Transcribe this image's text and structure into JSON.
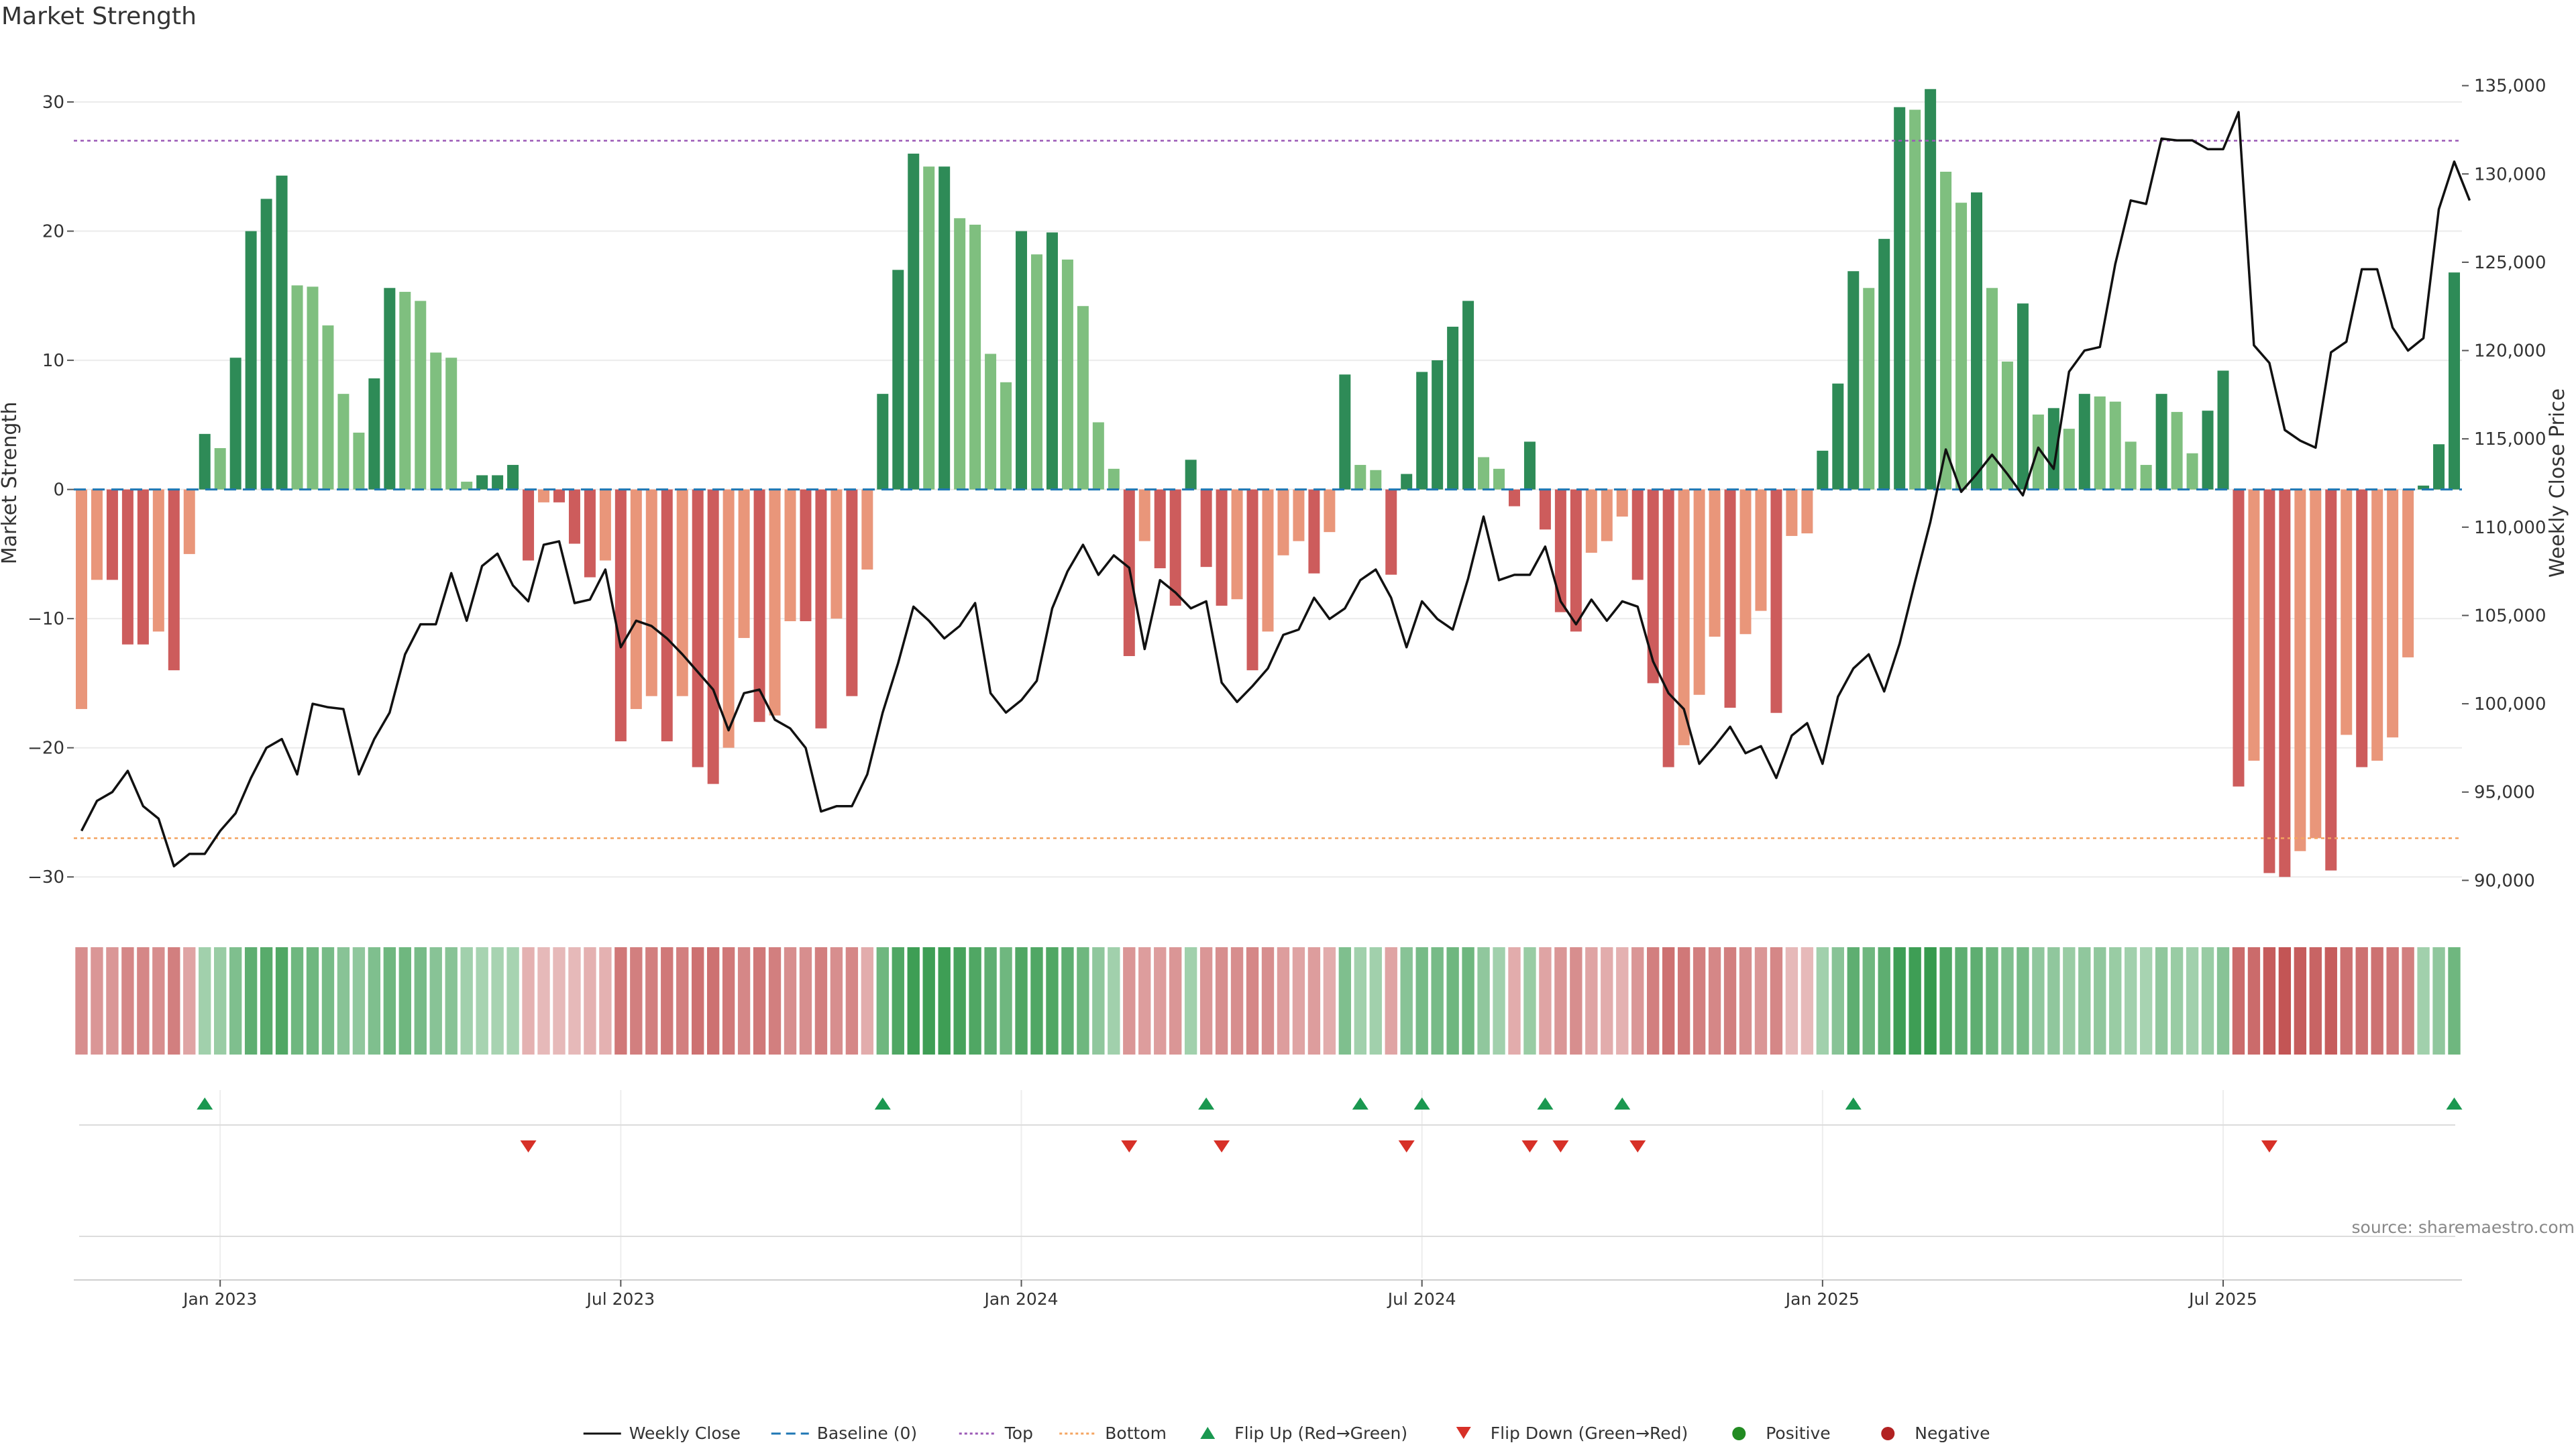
{
  "title": "Market Strength",
  "source": "source: sharemaestro.com",
  "colors": {
    "pos_strong": "#2e8b57",
    "pos_light": "#7fbf7f",
    "neg_strong": "#cd5c5c",
    "neg_light": "#e9967a",
    "price_line": "#111111",
    "baseline": "#1f77b4",
    "top_line": "#9b59b6",
    "bottom_line": "#f4a460",
    "flip_up": "#1a9850",
    "flip_down": "#d73027",
    "positive": "#228b22",
    "negative": "#b22222"
  },
  "chart_data": {
    "type": "bar",
    "title": "Market Strength",
    "ylabel_left": "Market Strength",
    "ylabel_right": "Weekly Close Price",
    "ylim_left": [
      -33,
      34
    ],
    "ylim_right": [
      88000,
      137000
    ],
    "yticks_left": [
      30,
      20,
      10,
      0,
      -10,
      -20,
      -30
    ],
    "yticks_left_labels": [
      "30",
      "20",
      "10",
      "0",
      "−10",
      "−20",
      "−30"
    ],
    "yticks_right": [
      135000,
      130000,
      125000,
      120000,
      115000,
      110000,
      105000,
      100000,
      95000,
      90000
    ],
    "yticks_right_labels": [
      "135,000",
      "130,000",
      "125,000",
      "120,000",
      "115,000",
      "110,000",
      "105,000",
      "100,000",
      "95,000",
      "90,000"
    ],
    "x_ticks": [
      {
        "label": "Jan 2023",
        "index": 9
      },
      {
        "label": "Jul 2023",
        "index": 35
      },
      {
        "label": "Jan 2024",
        "index": 61
      },
      {
        "label": "Jul 2024",
        "index": 87
      },
      {
        "label": "Jan 2025",
        "index": 113
      },
      {
        "label": "Jul 2025",
        "index": 139
      }
    ],
    "top_threshold": 27,
    "bottom_threshold": -27,
    "strength": [
      -17,
      -7,
      -7,
      -12,
      -12,
      -11,
      -14,
      -5,
      4.3,
      3.2,
      10.2,
      20,
      22.5,
      24.3,
      15.8,
      15.7,
      12.7,
      7.4,
      4.4,
      8.6,
      15.6,
      15.3,
      14.6,
      10.6,
      10.2,
      0.6,
      1.1,
      1.1,
      1.9,
      -5.5,
      -1,
      -1,
      -4.2,
      -6.8,
      -5.5,
      -19.5,
      -17,
      -16,
      -19.5,
      -16,
      -21.5,
      -22.8,
      -20,
      -11.5,
      -18,
      -17.5,
      -10.2,
      -10.2,
      -18.5,
      -10,
      -16,
      -6.2,
      7.4,
      17,
      26,
      25,
      25,
      21,
      20.5,
      10.5,
      8.3,
      20,
      18.2,
      19.9,
      17.8,
      14.2,
      5.2,
      1.6,
      -12.9,
      -4,
      -6.1,
      -9,
      2.3,
      -6,
      -9,
      -8.5,
      -14,
      -11,
      -5.1,
      -4,
      -6.5,
      -3.3,
      8.9,
      1.9,
      1.5,
      -6.6,
      1.2,
      9.1,
      10,
      12.6,
      14.6,
      2.5,
      1.6,
      -1.3,
      3.7,
      -3.1,
      -9.5,
      -11,
      -4.9,
      -4,
      -2.1,
      -7,
      -15,
      -21.5,
      -19.8,
      -15.9,
      -11.4,
      -16.9,
      -11.2,
      -9.4,
      -17.3,
      -3.6,
      -3.4,
      3,
      8.2,
      16.9,
      15.6,
      19.4,
      29.6,
      29.4,
      31,
      24.6,
      22.2,
      23,
      15.6,
      9.9,
      14.4,
      5.8,
      6.3,
      4.7,
      7.4,
      7.2,
      6.8,
      3.7,
      1.9,
      7.4,
      6,
      2.8,
      6.1,
      9.2,
      -23,
      -21,
      -29.7,
      -30,
      -28,
      -27,
      -29.5,
      -19,
      -21.5,
      -21,
      -19.2,
      -13,
      0.3,
      3.5,
      16.8
    ],
    "weekly_close": [
      92800,
      94500,
      95000,
      96200,
      94200,
      93500,
      90800,
      91500,
      91500,
      92800,
      93800,
      95800,
      97500,
      98000,
      96000,
      100000,
      99800,
      99700,
      96000,
      98000,
      99500,
      102800,
      104500,
      104500,
      107400,
      104700,
      107800,
      108500,
      106700,
      105800,
      109000,
      109200,
      105700,
      105900,
      107600,
      103200,
      104700,
      104400,
      103700,
      102800,
      101800,
      100800,
      98500,
      100600,
      100800,
      99100,
      98600,
      97500,
      93900,
      94200,
      94200,
      96000,
      99500,
      102300,
      105500,
      104700,
      103700,
      104400,
      105700,
      100600,
      99500,
      100200,
      101300,
      105400,
      107500,
      109000,
      107300,
      108400,
      107700,
      103100,
      107000,
      106300,
      105400,
      105800,
      101200,
      100100,
      101000,
      102000,
      103900,
      104200,
      106000,
      104800,
      105400,
      107000,
      107600,
      106000,
      103200,
      105800,
      104800,
      104200,
      107100,
      110600,
      107000,
      107300,
      107300,
      108900,
      105800,
      104500,
      105900,
      104700,
      105800,
      105500,
      102400,
      100600,
      99700,
      96600,
      97600,
      98700,
      97200,
      97600,
      95800,
      98200,
      98900,
      96600,
      100400,
      102000,
      102800,
      100700,
      103400,
      106900,
      110300,
      114400,
      112000,
      113000,
      114100,
      113000,
      111800,
      114500,
      113300,
      118800,
      120000,
      120200,
      124900,
      128500,
      128300,
      132000,
      131900,
      131900,
      131400,
      131400,
      133500,
      120300,
      119300,
      115500,
      114900,
      114500,
      119900,
      120500,
      124600,
      124600,
      121300,
      120000,
      120700,
      128000,
      130700,
      128500
    ],
    "heat": [
      -0.5,
      -0.45,
      -0.45,
      -0.55,
      -0.55,
      -0.5,
      -0.6,
      -0.35,
      0.3,
      0.35,
      0.5,
      0.7,
      0.75,
      0.8,
      0.6,
      0.6,
      0.55,
      0.45,
      0.4,
      0.5,
      0.6,
      0.6,
      0.55,
      0.45,
      0.45,
      0.3,
      0.25,
      0.25,
      0.25,
      -0.25,
      -0.2,
      -0.2,
      -0.2,
      -0.25,
      -0.25,
      -0.65,
      -0.6,
      -0.6,
      -0.65,
      -0.6,
      -0.7,
      -0.7,
      -0.65,
      -0.55,
      -0.65,
      -0.6,
      -0.5,
      -0.5,
      -0.6,
      -0.5,
      -0.55,
      -0.3,
      0.6,
      0.8,
      0.9,
      0.9,
      0.9,
      0.85,
      0.8,
      0.7,
      0.6,
      0.8,
      0.8,
      0.8,
      0.7,
      0.6,
      0.4,
      0.3,
      -0.45,
      -0.4,
      -0.4,
      -0.45,
      0.3,
      -0.45,
      -0.5,
      -0.5,
      -0.55,
      -0.5,
      -0.4,
      -0.35,
      -0.4,
      -0.3,
      0.5,
      0.3,
      0.3,
      -0.35,
      0.45,
      0.55,
      0.55,
      0.6,
      0.6,
      0.4,
      0.3,
      -0.3,
      0.35,
      -0.35,
      -0.45,
      -0.5,
      -0.35,
      -0.3,
      -0.25,
      -0.45,
      -0.6,
      -0.7,
      -0.65,
      -0.6,
      -0.55,
      -0.6,
      -0.5,
      -0.45,
      -0.55,
      -0.2,
      -0.2,
      0.3,
      0.45,
      0.7,
      0.6,
      0.7,
      0.9,
      0.9,
      0.95,
      0.8,
      0.7,
      0.7,
      0.6,
      0.5,
      0.55,
      0.4,
      0.4,
      0.35,
      0.4,
      0.4,
      0.35,
      0.3,
      0.25,
      0.4,
      0.35,
      0.3,
      0.35,
      0.45,
      -0.75,
      -0.75,
      -0.85,
      -0.9,
      -0.85,
      -0.8,
      -0.85,
      -0.7,
      -0.7,
      -0.7,
      -0.65,
      -0.6,
      0.3,
      0.4,
      0.6
    ],
    "flip_up_idx": [
      8,
      52,
      73,
      83,
      87,
      95,
      100,
      115,
      154
    ],
    "flip_down_idx": [
      29,
      68,
      74,
      86,
      94,
      96,
      101,
      142
    ]
  },
  "legend": {
    "weekly_close": "Weekly Close",
    "baseline": "Baseline (0)",
    "top": "Top",
    "bottom": "Bottom",
    "flip_up": "Flip Up (Red→Green)",
    "flip_down": "Flip Down (Green→Red)",
    "positive": "Positive",
    "negative": "Negative"
  }
}
